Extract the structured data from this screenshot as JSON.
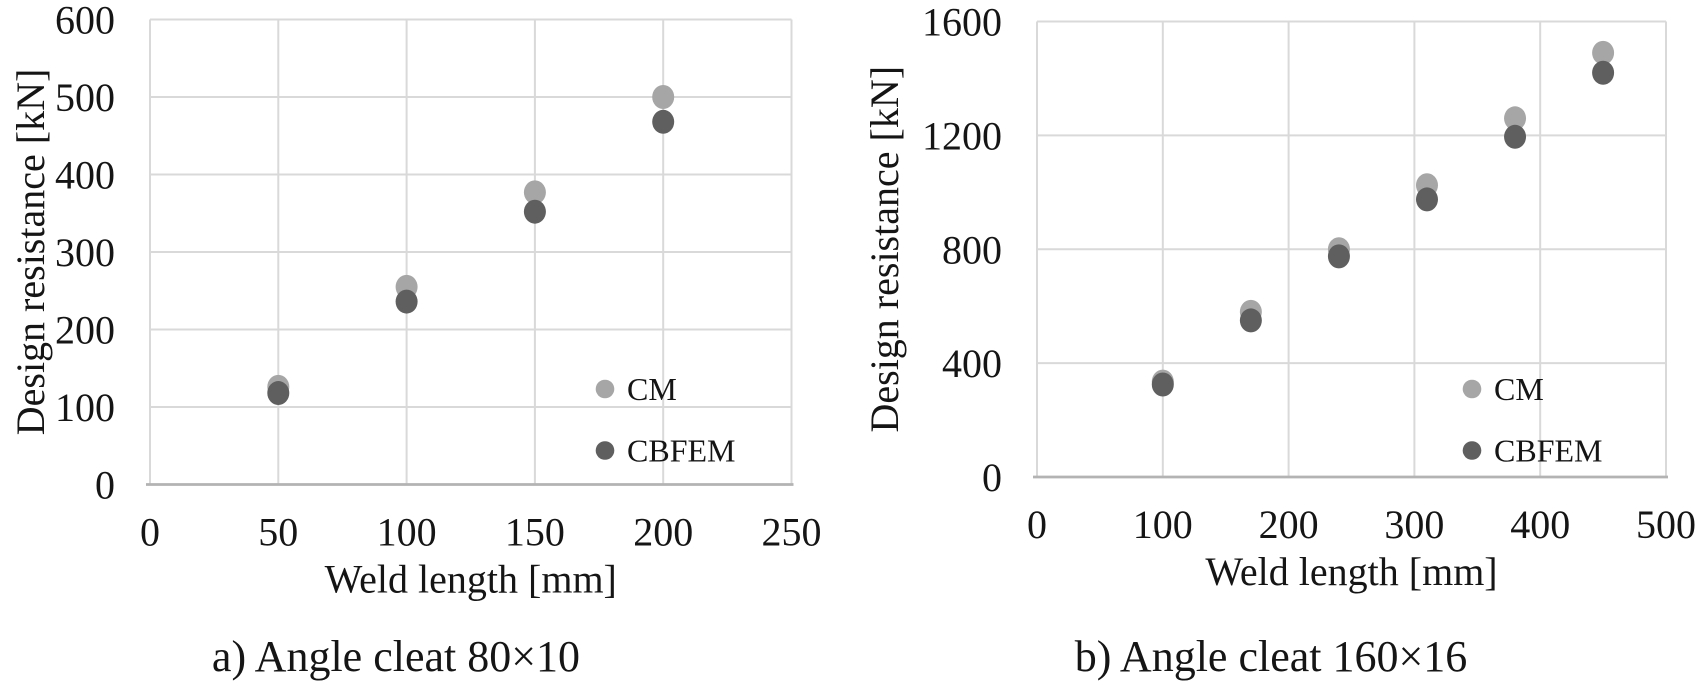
{
  "page": {
    "background_color": "#ffffff",
    "text_color": "#151515",
    "gridline_color": "#d9d9d9",
    "axis_line_color": "#b3b3b3"
  },
  "chart_data": [
    {
      "type": "scatter",
      "caption": "a) Angle cleat 80×10",
      "xlabel": "Weld length [mm]",
      "ylabel": "Design resistance [kN]",
      "xlim": [
        0,
        250
      ],
      "ylim": [
        0,
        600
      ],
      "x_ticks": [
        0,
        50,
        100,
        150,
        200,
        250
      ],
      "y_ticks": [
        0,
        100,
        200,
        300,
        400,
        500,
        600
      ],
      "grid": true,
      "legend_position": "inside lower right",
      "series": [
        {
          "name": "CM",
          "color": "#a6a6a6",
          "points": [
            [
              50,
              126
            ],
            [
              100,
              255
            ],
            [
              150,
              377
            ],
            [
              200,
              500
            ]
          ]
        },
        {
          "name": "CBFEM",
          "color": "#5f5f5f",
          "points": [
            [
              50,
              118
            ],
            [
              100,
              236
            ],
            [
              150,
              352
            ],
            [
              200,
              468
            ]
          ]
        }
      ]
    },
    {
      "type": "scatter",
      "caption": "b) Angle cleat 160×16",
      "xlabel": "Weld length [mm]",
      "ylabel": "Design resistance [kN]",
      "xlim": [
        0,
        500
      ],
      "ylim": [
        0,
        1600
      ],
      "x_ticks": [
        0,
        100,
        200,
        300,
        400,
        500
      ],
      "y_ticks": [
        0,
        400,
        800,
        1200,
        1600
      ],
      "grid": true,
      "legend_position": "inside lower right",
      "series": [
        {
          "name": "CM",
          "color": "#a6a6a6",
          "points": [
            [
              100,
              335
            ],
            [
              170,
              580
            ],
            [
              240,
              800
            ],
            [
              310,
              1025
            ],
            [
              380,
              1260
            ],
            [
              450,
              1490
            ]
          ]
        },
        {
          "name": "CBFEM",
          "color": "#5f5f5f",
          "points": [
            [
              100,
              325
            ],
            [
              170,
              550
            ],
            [
              240,
              775
            ],
            [
              310,
              975
            ],
            [
              380,
              1195
            ],
            [
              450,
              1420
            ]
          ]
        }
      ]
    }
  ]
}
